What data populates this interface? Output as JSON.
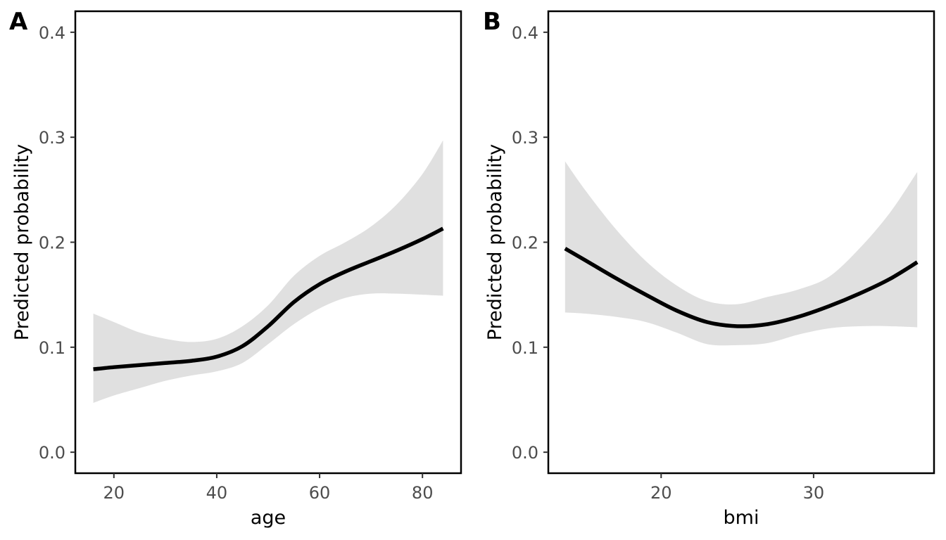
{
  "chart_data": [
    {
      "type": "line",
      "panel_tag": "A",
      "xlabel": "age",
      "ylabel": "Predicted probability",
      "xlim": [
        12.5,
        87.5
      ],
      "ylim": [
        -0.02,
        0.42
      ],
      "xticks": [
        20,
        40,
        60,
        80
      ],
      "yticks": [
        0.0,
        0.1,
        0.2,
        0.3,
        0.4
      ],
      "ytick_labels": [
        "0.0",
        "0.1",
        "0.2",
        "0.3",
        "0.4"
      ],
      "grid": false,
      "series": [
        {
          "x": [
            16,
            20,
            25,
            30,
            35,
            40,
            45,
            50,
            55,
            60,
            65,
            70,
            75,
            80,
            84
          ],
          "y": [
            0.079,
            0.081,
            0.083,
            0.085,
            0.087,
            0.091,
            0.101,
            0.12,
            0.143,
            0.16,
            0.172,
            0.182,
            0.192,
            0.203,
            0.213
          ],
          "lower": [
            0.047,
            0.054,
            0.061,
            0.068,
            0.073,
            0.077,
            0.085,
            0.103,
            0.122,
            0.137,
            0.147,
            0.151,
            0.151,
            0.15,
            0.149
          ],
          "upper": [
            0.132,
            0.124,
            0.114,
            0.108,
            0.105,
            0.108,
            0.12,
            0.14,
            0.168,
            0.187,
            0.2,
            0.215,
            0.236,
            0.265,
            0.297
          ]
        }
      ]
    },
    {
      "type": "line",
      "panel_tag": "B",
      "xlabel": "bmi",
      "ylabel": "Predicted probability",
      "xlim": [
        12.6,
        37.9
      ],
      "ylim": [
        -0.02,
        0.42
      ],
      "xticks": [
        20,
        30
      ],
      "yticks": [
        0.0,
        0.1,
        0.2,
        0.3,
        0.4
      ],
      "ytick_labels": [
        "0.0",
        "0.1",
        "0.2",
        "0.3",
        "0.4"
      ],
      "grid": false,
      "series": [
        {
          "x": [
            13.7,
            15,
            17,
            19,
            21,
            23,
            25,
            27,
            29,
            31,
            33,
            35,
            36.8
          ],
          "y": [
            0.194,
            0.183,
            0.166,
            0.15,
            0.135,
            0.124,
            0.12,
            0.122,
            0.129,
            0.139,
            0.151,
            0.165,
            0.181
          ],
          "lower": [
            0.133,
            0.132,
            0.129,
            0.124,
            0.114,
            0.103,
            0.102,
            0.104,
            0.112,
            0.118,
            0.12,
            0.12,
            0.119
          ],
          "upper": [
            0.277,
            0.25,
            0.213,
            0.182,
            0.159,
            0.144,
            0.141,
            0.148,
            0.155,
            0.167,
            0.194,
            0.228,
            0.267
          ]
        }
      ]
    }
  ],
  "colors": {
    "line": "#000000",
    "band": "#e0e0e0",
    "border": "#000000",
    "tick_label": "#4d4d4d"
  }
}
